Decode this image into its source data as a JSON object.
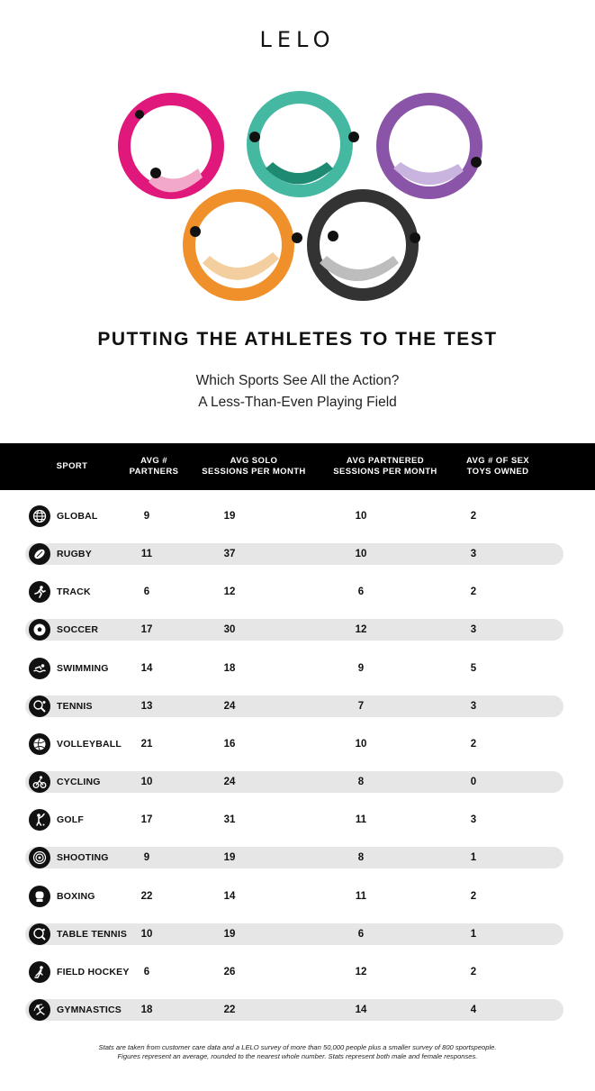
{
  "brand": "LELO",
  "title": "PUTTING THE ATHLETES TO THE TEST",
  "subtitle_line1": "Which Sports See All the Action?",
  "subtitle_line2": "A Less-Than-Even Playing Field",
  "columns": [
    "SPORT",
    "AVG #\nPARTNERS",
    "AVG SOLO\nSESSIONS PER MONTH",
    "AVG PARTNERED\nSESSIONS PER MONTH",
    "AVG # OF SEX\nTOYS OWNED"
  ],
  "ring_colors": [
    "#e0187c",
    "#45b8a2",
    "#8a55a8",
    "#f0902a",
    "#333333"
  ],
  "rows": [
    {
      "sport": "GLOBAL",
      "icon": "globe-icon",
      "partners": "9",
      "solo": "19",
      "partnered": "10",
      "toys": "2"
    },
    {
      "sport": "RUGBY",
      "icon": "rugby-ball-icon",
      "partners": "11",
      "solo": "37",
      "partnered": "10",
      "toys": "3"
    },
    {
      "sport": "TRACK",
      "icon": "runner-icon",
      "partners": "6",
      "solo": "12",
      "partnered": "6",
      "toys": "2"
    },
    {
      "sport": "SOCCER",
      "icon": "soccer-ball-icon",
      "partners": "17",
      "solo": "30",
      "partnered": "12",
      "toys": "3"
    },
    {
      "sport": "SWIMMING",
      "icon": "swimmer-icon",
      "partners": "14",
      "solo": "18",
      "partnered": "9",
      "toys": "5"
    },
    {
      "sport": "TENNIS",
      "icon": "tennis-racket-icon",
      "partners": "13",
      "solo": "24",
      "partnered": "7",
      "toys": "3"
    },
    {
      "sport": "VOLLEYBALL",
      "icon": "volleyball-icon",
      "partners": "21",
      "solo": "16",
      "partnered": "10",
      "toys": "2"
    },
    {
      "sport": "CYCLING",
      "icon": "cyclist-icon",
      "partners": "10",
      "solo": "24",
      "partnered": "8",
      "toys": "0"
    },
    {
      "sport": "GOLF",
      "icon": "golfer-icon",
      "partners": "17",
      "solo": "31",
      "partnered": "11",
      "toys": "3"
    },
    {
      "sport": "SHOOTING",
      "icon": "target-icon",
      "partners": "9",
      "solo": "19",
      "partnered": "8",
      "toys": "1"
    },
    {
      "sport": "BOXING",
      "icon": "boxing-glove-icon",
      "partners": "22",
      "solo": "14",
      "partnered": "11",
      "toys": "2"
    },
    {
      "sport": "TABLE TENNIS",
      "icon": "ping-pong-icon",
      "partners": "10",
      "solo": "19",
      "partnered": "6",
      "toys": "1"
    },
    {
      "sport": "FIELD HOCKEY",
      "icon": "hockey-player-icon",
      "partners": "6",
      "solo": "26",
      "partnered": "12",
      "toys": "2"
    },
    {
      "sport": "GYMNASTICS",
      "icon": "gymnast-icon",
      "partners": "18",
      "solo": "22",
      "partnered": "14",
      "toys": "4"
    }
  ],
  "footnote_line1": "Stats are taken from customer care data and a LELO survey of more than 50,000 people plus a smaller survey of 800 sportspeople.",
  "footnote_line2": "Figures represent an average, rounded to the nearest whole number. Stats represent both male and female responses."
}
